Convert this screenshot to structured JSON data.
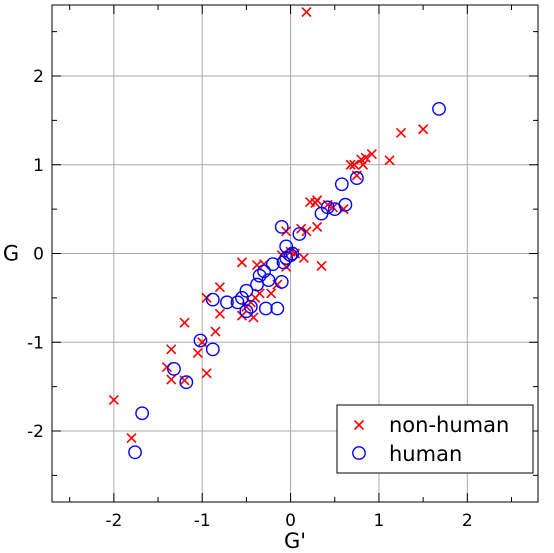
{
  "chart_data": {
    "type": "scatter",
    "xlabel": "G'",
    "ylabel": "G",
    "xlim": [
      -2.7,
      2.8
    ],
    "ylim": [
      -2.8,
      2.8
    ],
    "xticks": [
      -2,
      -1,
      0,
      1,
      2
    ],
    "yticks": [
      -2,
      -1,
      0,
      1,
      2
    ],
    "x_tick_labels": [
      "-2",
      "-1",
      "0",
      "1",
      "2"
    ],
    "y_tick_labels": [
      "-2",
      "-1",
      "0",
      "1",
      "2"
    ],
    "grid": true,
    "legend_position": "bottom-right",
    "colors": {
      "non_human": "#ff0000",
      "human": "#0000ff",
      "grid": "#aaaaaa"
    },
    "series": [
      {
        "name": "non-human",
        "marker": "x",
        "points": [
          [
            0.18,
            2.72
          ],
          [
            1.5,
            1.4
          ],
          [
            1.25,
            1.36
          ],
          [
            1.12,
            1.05
          ],
          [
            0.92,
            1.12
          ],
          [
            0.85,
            1.08
          ],
          [
            0.8,
            1.06
          ],
          [
            0.82,
            1.0
          ],
          [
            0.72,
            1.0
          ],
          [
            0.68,
            1.0
          ],
          [
            0.75,
            0.88
          ],
          [
            0.3,
            0.6
          ],
          [
            0.28,
            0.57
          ],
          [
            0.22,
            0.58
          ],
          [
            0.48,
            0.52
          ],
          [
            0.42,
            0.55
          ],
          [
            0.6,
            0.5
          ],
          [
            0.3,
            0.3
          ],
          [
            0.18,
            0.25
          ],
          [
            0.12,
            0.28
          ],
          [
            -0.05,
            0.25
          ],
          [
            0.05,
            0.0
          ],
          [
            0.0,
            0.02
          ],
          [
            -0.1,
            -0.02
          ],
          [
            0.15,
            -0.05
          ],
          [
            0.35,
            -0.14
          ],
          [
            -0.05,
            -0.15
          ],
          [
            -0.3,
            -0.12
          ],
          [
            -0.38,
            -0.13
          ],
          [
            -0.55,
            -0.1
          ],
          [
            -0.15,
            -0.35
          ],
          [
            -0.22,
            -0.45
          ],
          [
            -0.35,
            -0.45
          ],
          [
            -0.4,
            -0.5
          ],
          [
            -0.45,
            -0.55
          ],
          [
            -0.5,
            -0.6
          ],
          [
            -0.42,
            -0.72
          ],
          [
            -0.55,
            -0.7
          ],
          [
            -0.8,
            -0.38
          ],
          [
            -0.95,
            -0.5
          ],
          [
            -0.8,
            -0.68
          ],
          [
            -0.85,
            -0.88
          ],
          [
            -1.0,
            -1.0
          ],
          [
            -1.05,
            -1.12
          ],
          [
            -1.2,
            -0.78
          ],
          [
            -1.35,
            -1.08
          ],
          [
            -1.4,
            -1.28
          ],
          [
            -1.35,
            -1.42
          ],
          [
            -1.2,
            -1.43
          ],
          [
            -0.95,
            -1.35
          ],
          [
            -2.0,
            -1.65
          ],
          [
            -1.8,
            -2.08
          ]
        ]
      },
      {
        "name": "human",
        "marker": "o",
        "points": [
          [
            1.68,
            1.63
          ],
          [
            0.75,
            0.85
          ],
          [
            0.58,
            0.78
          ],
          [
            0.5,
            0.5
          ],
          [
            0.42,
            0.52
          ],
          [
            0.62,
            0.55
          ],
          [
            0.35,
            0.45
          ],
          [
            0.1,
            0.22
          ],
          [
            -0.1,
            0.3
          ],
          [
            -0.05,
            0.08
          ],
          [
            0.0,
            -0.02
          ],
          [
            0.02,
            0.0
          ],
          [
            -0.05,
            -0.05
          ],
          [
            -0.08,
            -0.1
          ],
          [
            -0.2,
            -0.12
          ],
          [
            -0.3,
            -0.2
          ],
          [
            -0.35,
            -0.25
          ],
          [
            -0.25,
            -0.3
          ],
          [
            -0.1,
            -0.32
          ],
          [
            -0.38,
            -0.35
          ],
          [
            -0.5,
            -0.42
          ],
          [
            -0.55,
            -0.5
          ],
          [
            -0.6,
            -0.55
          ],
          [
            -0.72,
            -0.55
          ],
          [
            -0.45,
            -0.6
          ],
          [
            -0.28,
            -0.62
          ],
          [
            -0.15,
            -0.62
          ],
          [
            -0.5,
            -0.65
          ],
          [
            -0.88,
            -0.52
          ],
          [
            -1.02,
            -0.98
          ],
          [
            -0.88,
            -1.08
          ],
          [
            -1.32,
            -1.3
          ],
          [
            -1.18,
            -1.45
          ],
          [
            -1.68,
            -1.8
          ],
          [
            -1.76,
            -2.24
          ]
        ]
      }
    ]
  }
}
